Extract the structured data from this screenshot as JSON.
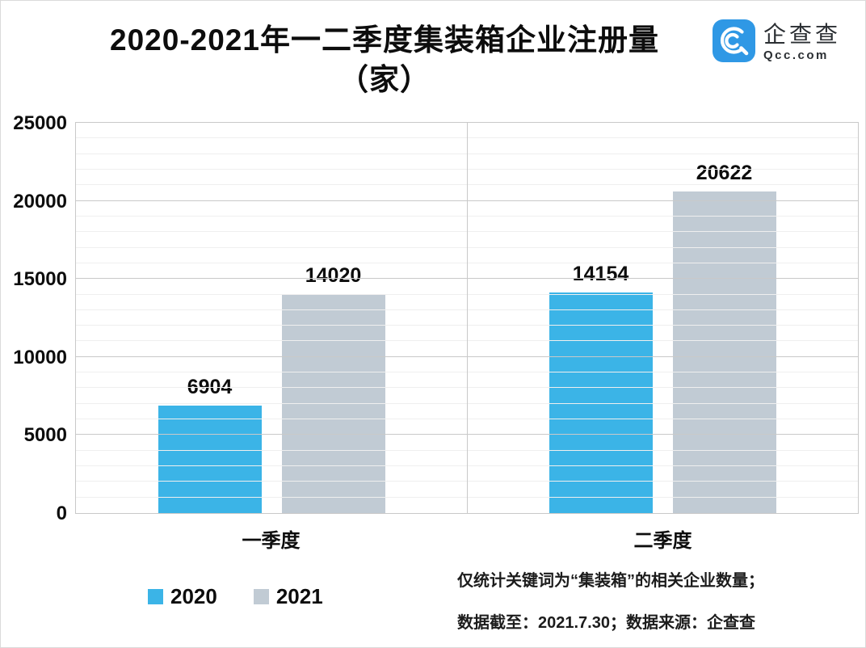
{
  "header": {
    "title_line1": "2020-2021年一二季度集装箱企业注册量",
    "title_line2": "（家）",
    "logo": {
      "name": "企查查",
      "domain": "Qcc.com",
      "brand_color": "#2f98e5",
      "icon": "qcc-spiral-magnifier-icon"
    }
  },
  "chart_data": {
    "type": "bar",
    "title": "2020-2021年一二季度集装箱企业注册量（家）",
    "categories": [
      "一季度",
      "二季度"
    ],
    "series": [
      {
        "name": "2020",
        "color": "#3bb4e7",
        "values": [
          6904,
          14154
        ]
      },
      {
        "name": "2021",
        "color": "#c1cbd4",
        "values": [
          14020,
          20622
        ]
      }
    ],
    "xlabel": "",
    "ylabel": "",
    "ylim": [
      0,
      25000
    ],
    "y_tick_values": [
      0,
      5000,
      10000,
      15000,
      20000,
      25000
    ],
    "y_major_step": 5000,
    "y_minor_step": 1000,
    "grid": true,
    "legend_position": "bottom-left",
    "data_labels": true
  },
  "footnote": {
    "line1": "仅统计关键词为“集装箱”的相关企业数量；",
    "line2": "数据截至：2021.7.30；数据来源：企查查"
  }
}
